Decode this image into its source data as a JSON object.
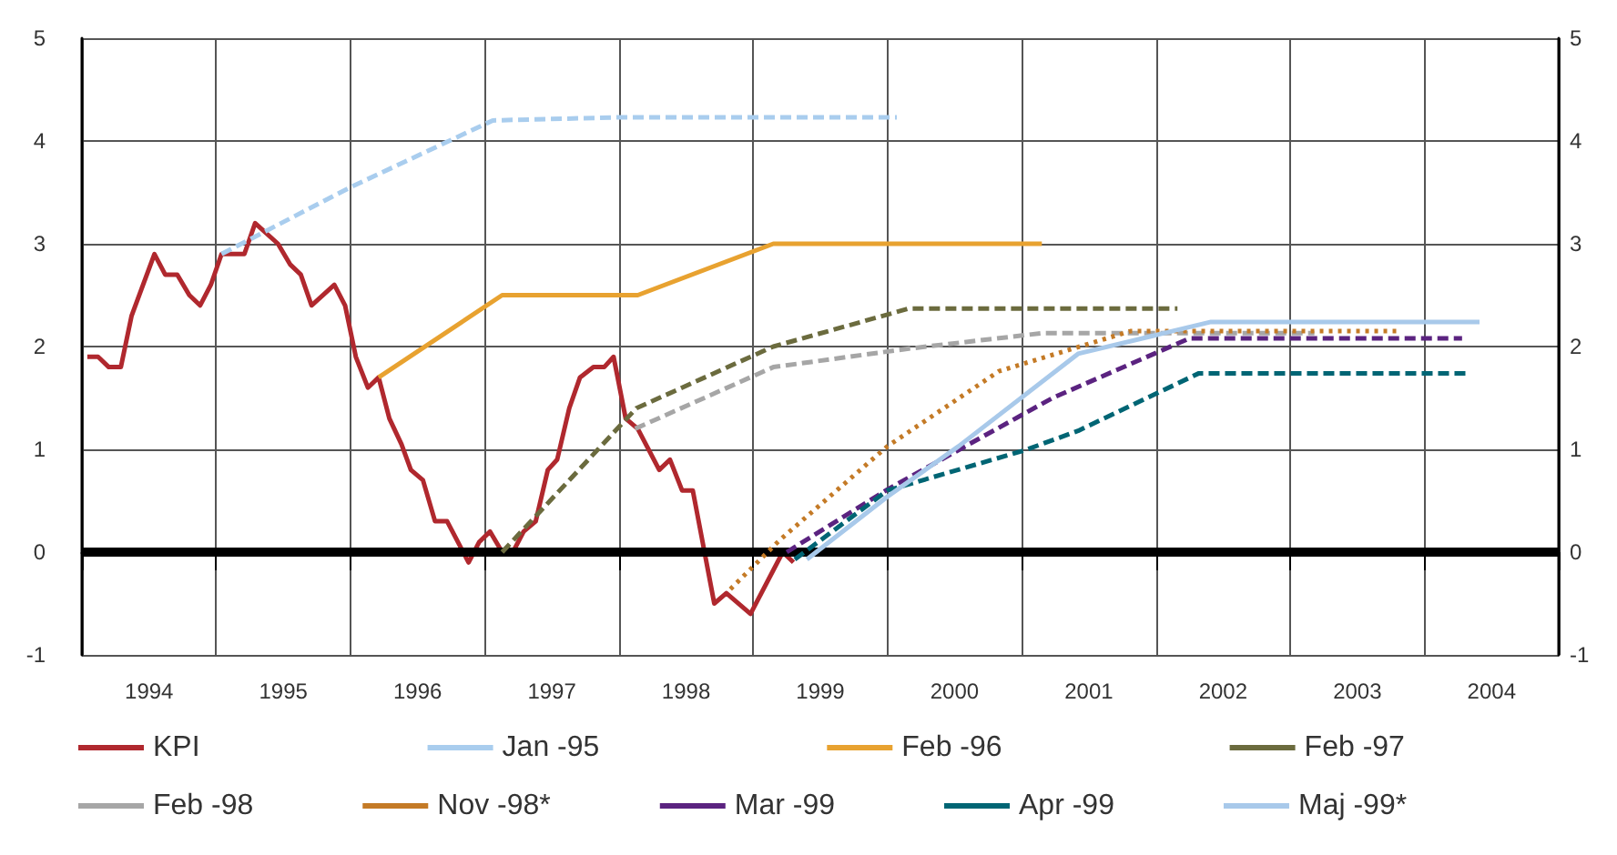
{
  "chart_data": {
    "type": "line",
    "xlim": [
      1994,
      2005
    ],
    "xticks": [
      {
        "value": 1994,
        "label": null
      },
      {
        "value": 1994.5,
        "label": "1994"
      },
      {
        "value": 1995,
        "label": null
      },
      {
        "value": 1995.5,
        "label": "1995"
      },
      {
        "value": 1996,
        "label": null
      },
      {
        "value": 1996.5,
        "label": "1996"
      },
      {
        "value": 1997,
        "label": null
      },
      {
        "value": 1997.5,
        "label": "1997"
      },
      {
        "value": 1998,
        "label": null
      },
      {
        "value": 1998.5,
        "label": "1998"
      },
      {
        "value": 1999,
        "label": null
      },
      {
        "value": 1999.5,
        "label": "1999"
      },
      {
        "value": 2000,
        "label": null
      },
      {
        "value": 2000.5,
        "label": "2000"
      },
      {
        "value": 2001,
        "label": null
      },
      {
        "value": 2001.5,
        "label": "2001"
      },
      {
        "value": 2002,
        "label": null
      },
      {
        "value": 2002.5,
        "label": "2002"
      },
      {
        "value": 2003,
        "label": null
      },
      {
        "value": 2003.5,
        "label": "2003"
      },
      {
        "value": 2004,
        "label": null
      },
      {
        "value": 2004.5,
        "label": "2004"
      },
      {
        "value": 2005,
        "label": null
      }
    ],
    "ylim": [
      -1,
      5
    ],
    "yticks": [
      -1,
      0,
      1,
      2,
      3,
      4,
      5
    ],
    "y2lim": [
      -1,
      5
    ],
    "y2ticks": [
      -1,
      0,
      1,
      2,
      3,
      4,
      5
    ],
    "grid": true,
    "legend": "bottom",
    "marker": "none",
    "ref_lines": [
      {
        "axis": "y",
        "value": 0,
        "color": "#000000"
      }
    ],
    "series": [
      {
        "name": "KPI",
        "color": "#b0282e",
        "line_style": "solid",
        "x": [
          1994.04,
          1994.12,
          1994.2,
          1994.29,
          1994.37,
          1994.54,
          1994.62,
          1994.71,
          1994.8,
          1994.88,
          1994.96,
          1995.04,
          1995.21,
          1995.29,
          1995.46,
          1995.55,
          1995.63,
          1995.71,
          1995.88,
          1995.96,
          1996.04,
          1996.13,
          1996.21,
          1996.29,
          1996.38,
          1996.45,
          1996.54,
          1996.63,
          1996.72,
          1996.88,
          1996.96,
          1997.04,
          1997.13,
          1997.21,
          1997.29,
          1997.38,
          1997.47,
          1997.54,
          1997.63,
          1997.71,
          1997.81,
          1997.89,
          1997.96,
          1998.05,
          1998.14,
          1998.3,
          1998.38,
          1998.47,
          1998.55,
          1998.71,
          1998.8,
          1998.98,
          1999.22,
          1999.3
        ],
        "values": [
          1.9,
          1.9,
          1.8,
          1.8,
          2.3,
          2.9,
          2.7,
          2.7,
          2.5,
          2.4,
          2.6,
          2.9,
          2.9,
          3.2,
          3.0,
          2.8,
          2.7,
          2.4,
          2.6,
          2.4,
          1.9,
          1.6,
          1.7,
          1.3,
          1.05,
          0.8,
          0.7,
          0.3,
          0.3,
          -0.1,
          0.1,
          0.2,
          0.0,
          0.0,
          0.2,
          0.3,
          0.8,
          0.9,
          1.4,
          1.7,
          1.8,
          1.8,
          1.9,
          1.3,
          1.2,
          0.8,
          0.9,
          0.6,
          0.6,
          -0.5,
          -0.4,
          -0.6,
          0.0,
          -0.1
        ]
      },
      {
        "name": "Jan -95",
        "color": "#a9cdee",
        "line_style": "dashed",
        "x": [
          1995.04,
          1996.0,
          1997.06,
          1998.0,
          2000.07
        ],
        "values": [
          2.9,
          3.55,
          4.2,
          4.23,
          4.23
        ]
      },
      {
        "name": "Feb -96",
        "color": "#e8a230",
        "line_style": "solid",
        "x": [
          1996.21,
          1997.13,
          1998.14,
          1999.15,
          2001.15
        ],
        "values": [
          1.7,
          2.5,
          2.5,
          3.0,
          3.0
        ]
      },
      {
        "name": "Feb -97",
        "color": "#6b6b3e",
        "line_style": "dashed",
        "x": [
          1997.13,
          1998.13,
          1999.15,
          2000.16,
          2002.16
        ],
        "values": [
          0.0,
          1.4,
          2.0,
          2.37,
          2.37
        ]
      },
      {
        "name": "Feb -98",
        "color": "#a6a6a6",
        "line_style": "dashed",
        "x": [
          1998.12,
          1999.15,
          2000.16,
          2001.15,
          2003.18
        ],
        "values": [
          1.2,
          1.8,
          1.98,
          2.13,
          2.13
        ]
      },
      {
        "name": "Nov -98*",
        "color": "#c47a26",
        "line_style": "dotted",
        "x": [
          1998.83,
          1999.2,
          2000.0,
          2000.83,
          2001.81,
          2003.81
        ],
        "values": [
          -0.36,
          0.12,
          1.03,
          1.76,
          2.15,
          2.15
        ]
      },
      {
        "name": "Mar -99",
        "color": "#5b2380",
        "line_style": "dashed",
        "x": [
          1999.25,
          2000.0,
          2001.23,
          2002.25,
          2004.28
        ],
        "values": [
          0.0,
          0.61,
          1.5,
          2.08,
          2.08
        ]
      },
      {
        "name": "Apr -99",
        "color": "#006574",
        "line_style": "dashed",
        "x": [
          1999.31,
          2000.0,
          2001.02,
          2001.42,
          2002.32,
          2004.34
        ],
        "values": [
          -0.07,
          0.6,
          0.99,
          1.18,
          1.74,
          1.74
        ]
      },
      {
        "name": "Maj -99*",
        "color": "#a8c9ea",
        "line_style": "solid",
        "x": [
          1999.4,
          2000.0,
          2000.53,
          2001.42,
          2002.41,
          2004.41
        ],
        "values": [
          -0.07,
          0.54,
          1.03,
          1.93,
          2.24,
          2.24
        ]
      }
    ]
  }
}
